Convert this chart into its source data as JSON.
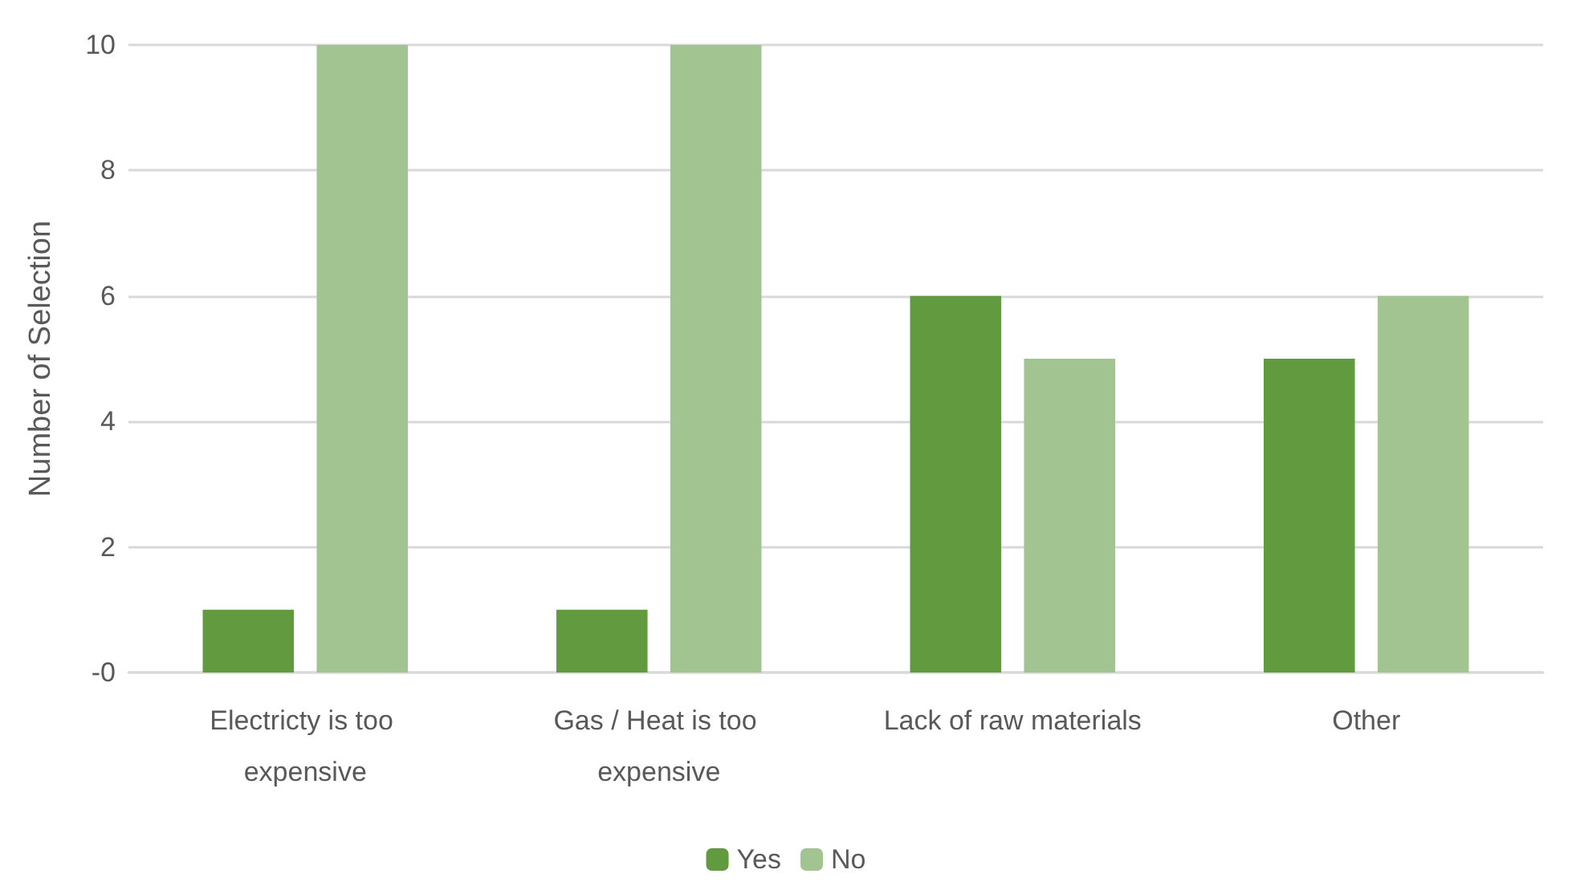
{
  "chart_data": {
    "type": "bar",
    "ylabel": "Number of Selection",
    "categories": [
      "Electricty is too expensive",
      "Gas / Heat is too expensive",
      "Lack of raw materials",
      "Other"
    ],
    "series": [
      {
        "name": "Yes",
        "color": "#629b3f",
        "values": [
          1,
          1,
          6,
          5
        ]
      },
      {
        "name": "No",
        "color": "#a2c490",
        "values": [
          10,
          10,
          5,
          6
        ]
      }
    ],
    "ylim": [
      0,
      10
    ],
    "yticks": [
      {
        "value": 0,
        "label": "-0"
      },
      2,
      4,
      6,
      8,
      10
    ],
    "grid": "y",
    "legend": "bottom"
  }
}
